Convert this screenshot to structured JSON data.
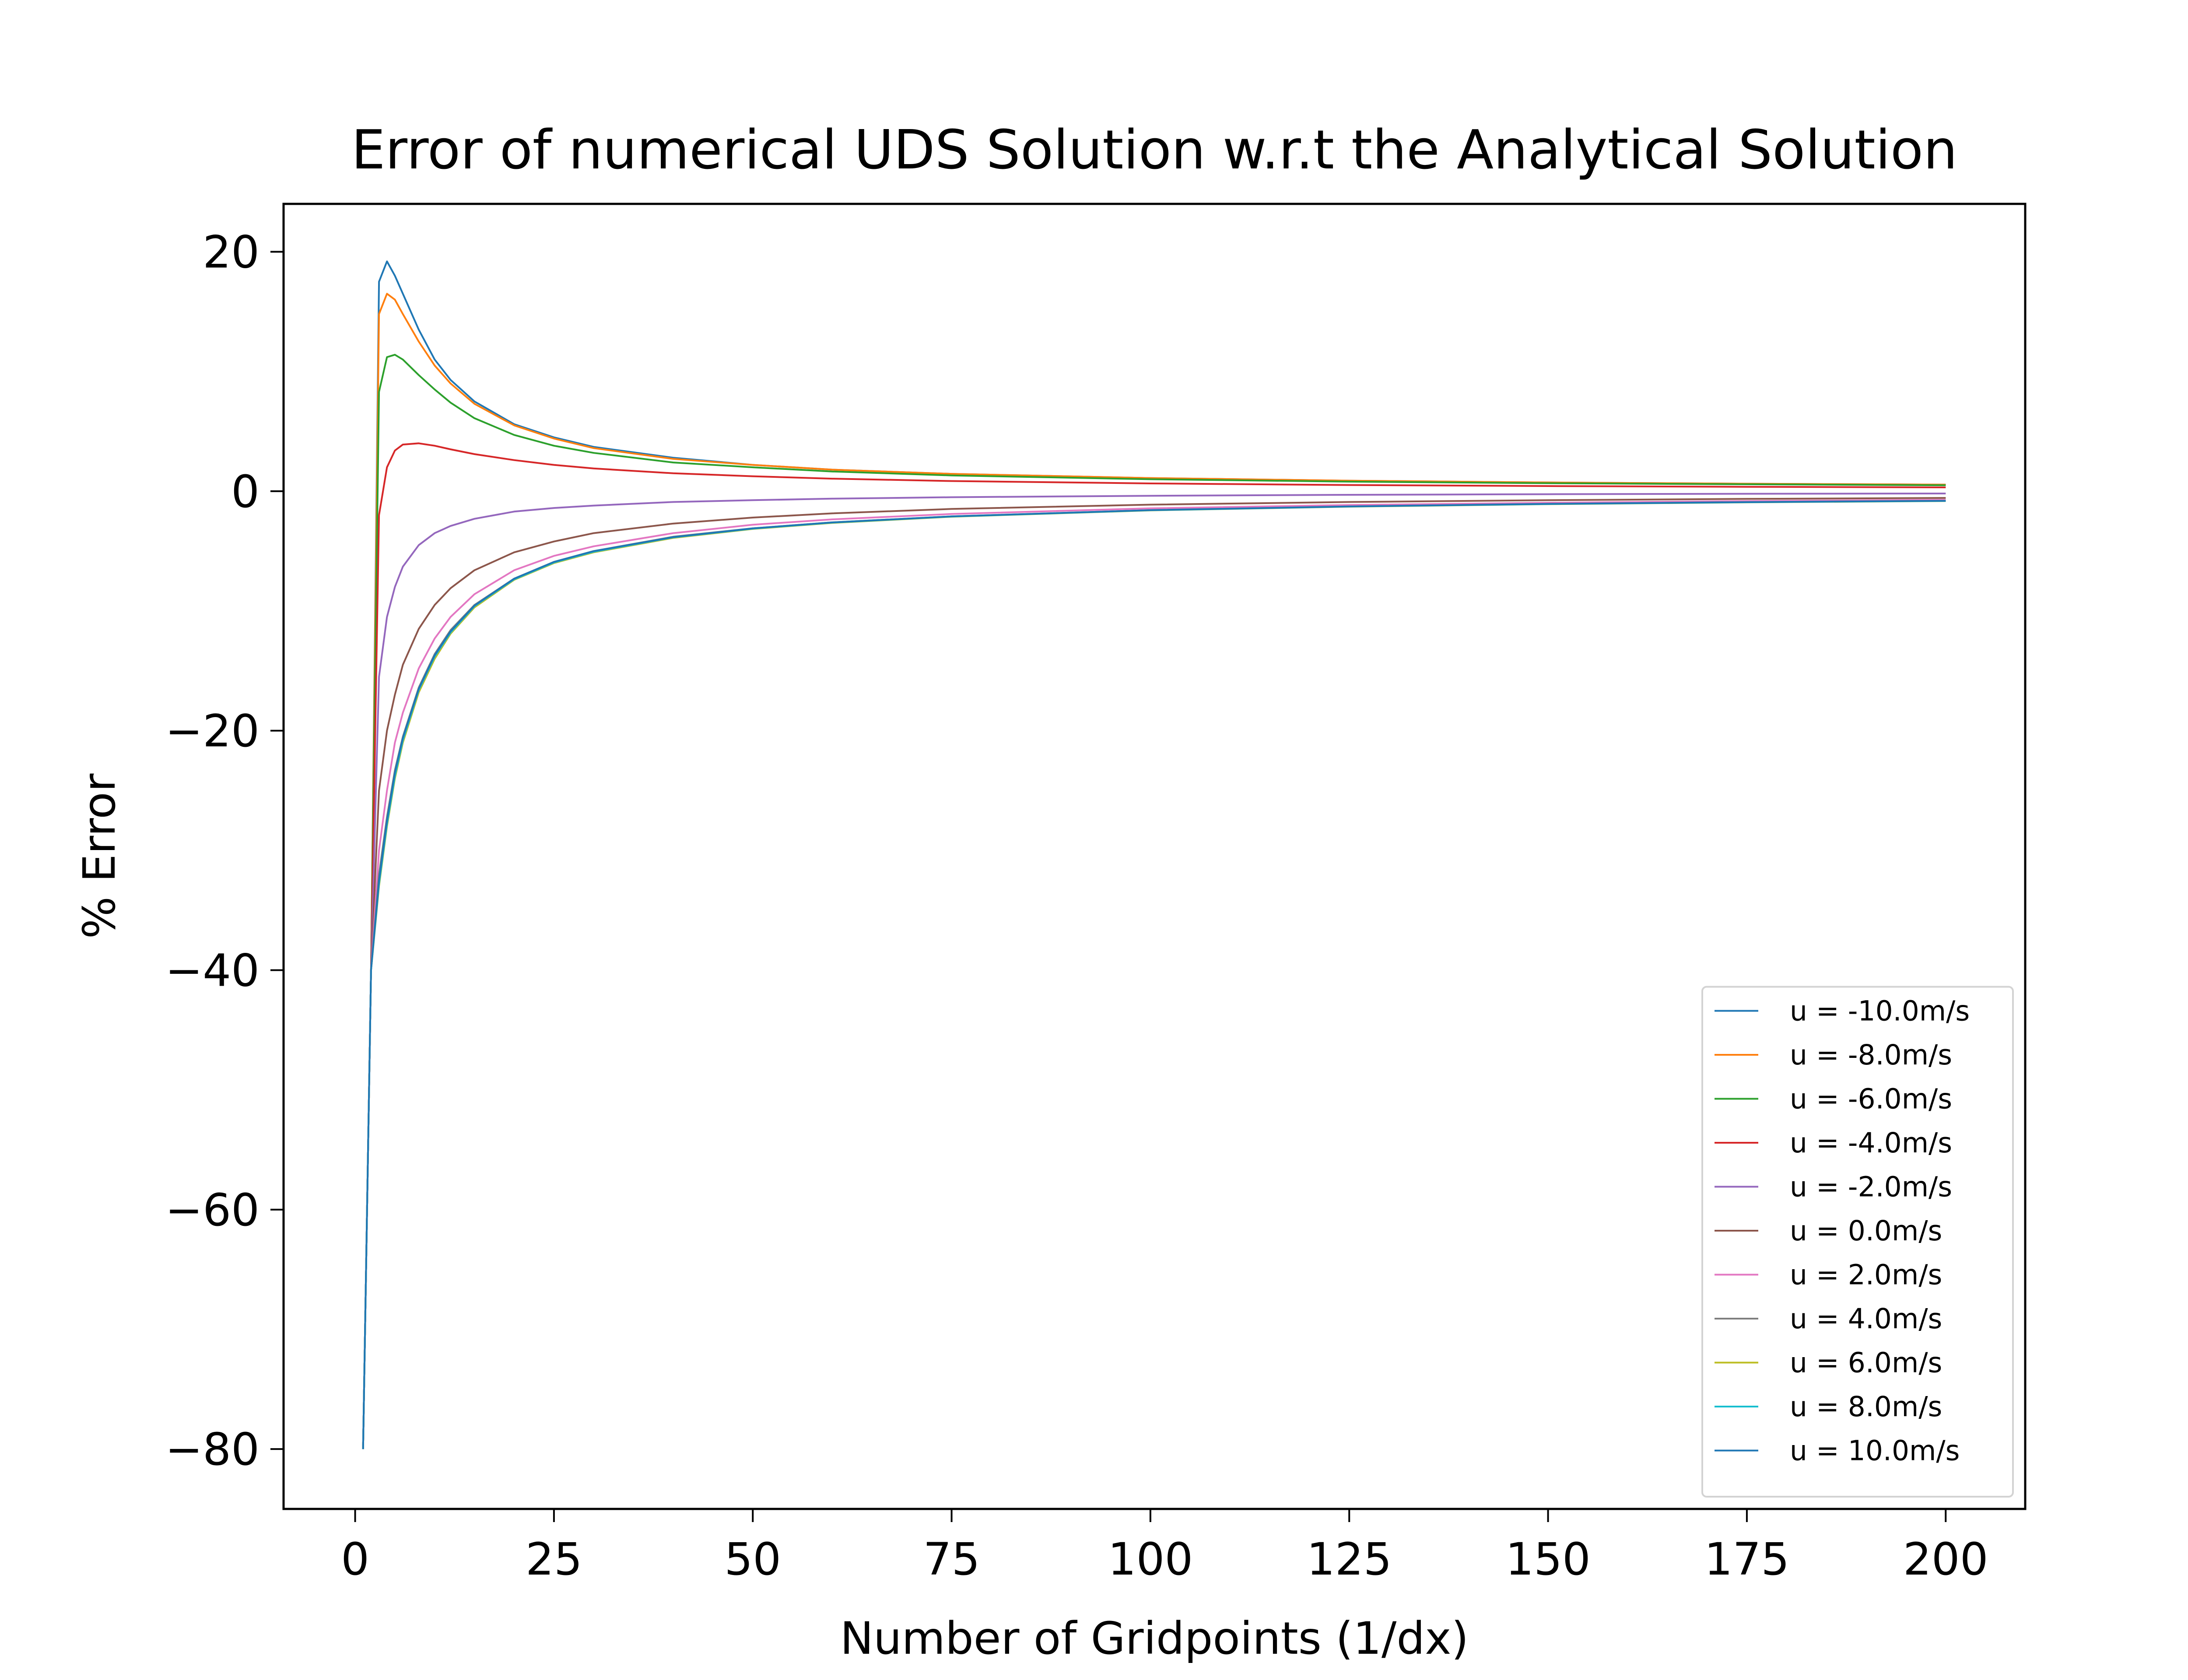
{
  "chart_data": {
    "type": "line",
    "title": "Error of numerical UDS Solution w.r.t the Analytical Solution",
    "xlabel": "Number of Gridpoints (1/dx)",
    "ylabel": "% Error",
    "xlim": [
      -9,
      210
    ],
    "ylim": [
      -85,
      24
    ],
    "xticks": [
      0,
      25,
      50,
      75,
      100,
      125,
      150,
      175,
      200
    ],
    "xtick_labels": [
      "0",
      "25",
      "50",
      "75",
      "100",
      "125",
      "150",
      "175",
      "200"
    ],
    "yticks": [
      20,
      0,
      -20,
      -40,
      -60,
      -80
    ],
    "ytick_labels": [
      "20",
      "0",
      "−20",
      "−40",
      "−60",
      "−80"
    ],
    "grid": false,
    "legend_position": "lower-right",
    "series": [
      {
        "name": "u = -10.0m/s",
        "color": "#1f77b4",
        "x": [
          1,
          2,
          3,
          4,
          5,
          6,
          8,
          10,
          12,
          15,
          20,
          25,
          30,
          40,
          50,
          60,
          75,
          100,
          125,
          150,
          175,
          200
        ],
        "y": [
          -80,
          -40,
          17.5,
          19.2,
          18,
          16.5,
          13.5,
          11,
          9.3,
          7.5,
          5.6,
          4.5,
          3.7,
          2.8,
          2.2,
          1.8,
          1.45,
          1.1,
          0.88,
          0.73,
          0.63,
          0.55
        ]
      },
      {
        "name": "u = -8.0m/s",
        "color": "#ff7f0e",
        "x": [
          1,
          2,
          3,
          4,
          5,
          6,
          8,
          10,
          12,
          15,
          20,
          25,
          30,
          40,
          50,
          60,
          75,
          100,
          125,
          150,
          175,
          200
        ],
        "y": [
          -80,
          -40,
          14.8,
          16.5,
          16,
          14.8,
          12.5,
          10.5,
          9,
          7.3,
          5.5,
          4.4,
          3.6,
          2.7,
          2.2,
          1.8,
          1.45,
          1.1,
          0.88,
          0.73,
          0.63,
          0.55
        ]
      },
      {
        "name": "u = -6.0m/s",
        "color": "#2ca02c",
        "x": [
          1,
          2,
          3,
          4,
          5,
          6,
          8,
          10,
          12,
          15,
          20,
          25,
          30,
          40,
          50,
          60,
          75,
          100,
          125,
          150,
          175,
          200
        ],
        "y": [
          -80,
          -40,
          8.3,
          11.2,
          11.4,
          11,
          9.7,
          8.5,
          7.4,
          6.1,
          4.7,
          3.8,
          3.2,
          2.4,
          2,
          1.65,
          1.32,
          1,
          0.8,
          0.67,
          0.58,
          0.5
        ]
      },
      {
        "name": "u = -4.0m/s",
        "color": "#d62728",
        "x": [
          1,
          2,
          3,
          4,
          5,
          6,
          8,
          10,
          12,
          15,
          20,
          25,
          30,
          40,
          50,
          60,
          75,
          100,
          125,
          150,
          175,
          200
        ],
        "y": [
          -80,
          -40,
          -2,
          2,
          3.4,
          3.9,
          4,
          3.8,
          3.5,
          3.1,
          2.6,
          2.2,
          1.9,
          1.5,
          1.25,
          1.05,
          0.85,
          0.65,
          0.52,
          0.43,
          0.37,
          0.32
        ]
      },
      {
        "name": "u = -2.0m/s",
        "color": "#9467bd",
        "x": [
          1,
          2,
          3,
          4,
          5,
          6,
          8,
          10,
          12,
          15,
          20,
          25,
          30,
          40,
          50,
          60,
          75,
          100,
          125,
          150,
          175,
          200
        ],
        "y": [
          -80,
          -40,
          -15.5,
          -10.5,
          -8,
          -6.3,
          -4.5,
          -3.5,
          -2.9,
          -2.3,
          -1.7,
          -1.4,
          -1.2,
          -0.9,
          -0.75,
          -0.62,
          -0.5,
          -0.38,
          -0.3,
          -0.25,
          -0.21,
          -0.19
        ]
      },
      {
        "name": "u = 0.0m/s",
        "color": "#8c564b",
        "x": [
          1,
          2,
          3,
          4,
          5,
          6,
          8,
          10,
          12,
          15,
          20,
          25,
          30,
          40,
          50,
          60,
          75,
          100,
          125,
          150,
          175,
          200
        ],
        "y": [
          -80,
          -40,
          -25,
          -20,
          -17,
          -14.5,
          -11.5,
          -9.5,
          -8.1,
          -6.6,
          -5.1,
          -4.2,
          -3.5,
          -2.7,
          -2.2,
          -1.85,
          -1.48,
          -1.12,
          -0.9,
          -0.75,
          -0.64,
          -0.56
        ]
      },
      {
        "name": "u = 2.0m/s",
        "color": "#e377c2",
        "x": [
          1,
          2,
          3,
          4,
          5,
          6,
          8,
          10,
          12,
          15,
          20,
          25,
          30,
          40,
          50,
          60,
          75,
          100,
          125,
          150,
          175,
          200
        ],
        "y": [
          -80,
          -40,
          -30,
          -25,
          -21,
          -18.5,
          -14.8,
          -12.3,
          -10.5,
          -8.6,
          -6.6,
          -5.4,
          -4.6,
          -3.5,
          -2.8,
          -2.35,
          -1.9,
          -1.43,
          -1.15,
          -0.96,
          -0.82,
          -0.72
        ]
      },
      {
        "name": "u = 4.0m/s",
        "color": "#7f7f7f",
        "x": [
          1,
          2,
          3,
          4,
          5,
          6,
          8,
          10,
          12,
          15,
          20,
          25,
          30,
          40,
          50,
          60,
          75,
          100,
          125,
          150,
          175,
          200
        ],
        "y": [
          -80,
          -40,
          -32,
          -27.2,
          -23.3,
          -20.5,
          -16.4,
          -13.6,
          -11.6,
          -9.5,
          -7.3,
          -5.9,
          -5,
          -3.8,
          -3.1,
          -2.6,
          -2.1,
          -1.58,
          -1.27,
          -1.06,
          -0.91,
          -0.8
        ]
      },
      {
        "name": "u = 6.0m/s",
        "color": "#bcbd22",
        "x": [
          1,
          2,
          3,
          4,
          5,
          6,
          8,
          10,
          12,
          15,
          20,
          25,
          30,
          40,
          50,
          60,
          75,
          100,
          125,
          150,
          175,
          200
        ],
        "y": [
          -80,
          -40,
          -33,
          -28,
          -24,
          -21,
          -16.8,
          -14,
          -11.9,
          -9.7,
          -7.4,
          -6,
          -5.1,
          -3.9,
          -3.15,
          -2.65,
          -2.13,
          -1.6,
          -1.29,
          -1.08,
          -0.93,
          -0.82
        ]
      },
      {
        "name": "u = 8.0m/s",
        "color": "#17becf",
        "x": [
          1,
          2,
          3,
          4,
          5,
          6,
          8,
          10,
          12,
          15,
          20,
          25,
          30,
          40,
          50,
          60,
          75,
          100,
          125,
          150,
          175,
          200
        ],
        "y": [
          -80,
          -40,
          -32.8,
          -27.8,
          -23.8,
          -20.8,
          -16.6,
          -13.8,
          -11.8,
          -9.6,
          -7.35,
          -5.95,
          -5.05,
          -3.85,
          -3.12,
          -2.62,
          -2.11,
          -1.59,
          -1.28,
          -1.07,
          -0.92,
          -0.81
        ]
      },
      {
        "name": "u = 10.0m/s",
        "color": "#1f77b4",
        "x": [
          1,
          2,
          3,
          4,
          5,
          6,
          8,
          10,
          12,
          15,
          20,
          25,
          30,
          40,
          50,
          60,
          75,
          100,
          125,
          150,
          175,
          200
        ],
        "y": [
          -80,
          -40,
          -32.5,
          -27.5,
          -23.5,
          -20.6,
          -16.5,
          -13.7,
          -11.7,
          -9.55,
          -7.3,
          -5.9,
          -5,
          -3.83,
          -3.1,
          -2.6,
          -2.1,
          -1.58,
          -1.27,
          -1.06,
          -0.91,
          -0.8
        ]
      }
    ]
  }
}
